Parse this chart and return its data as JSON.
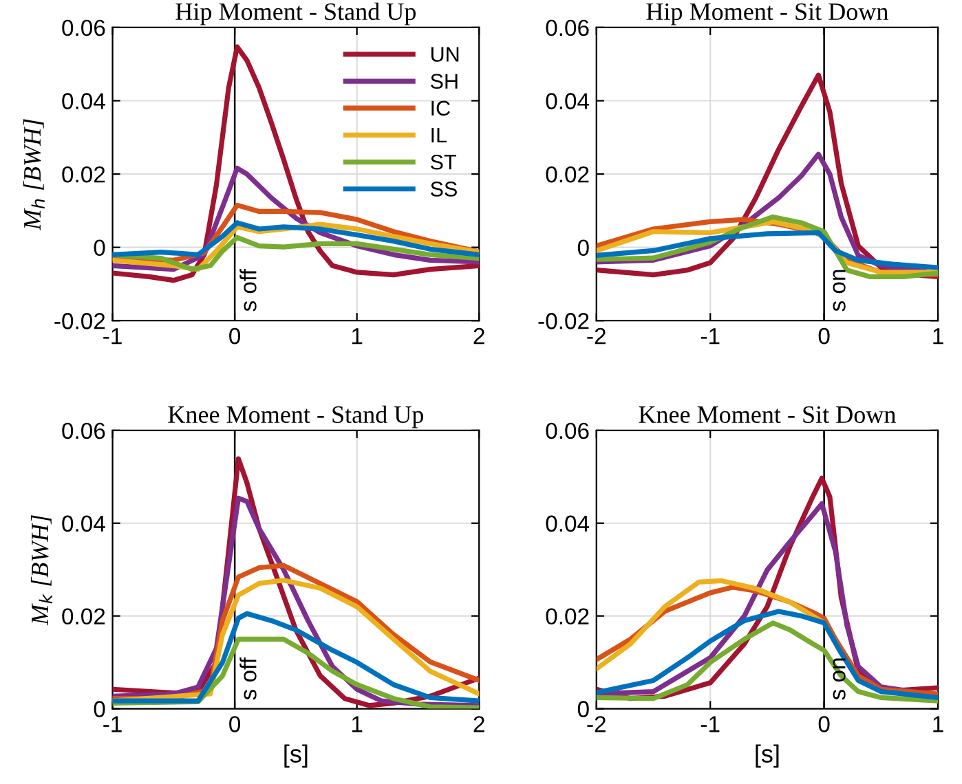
{
  "chart_data": [
    {
      "type": "line",
      "title": "Hip Moment - Stand Up",
      "ylabel": "M$_{h}$ [BWH]",
      "xlim": [
        -1,
        2
      ],
      "xticks": [
        -1,
        0,
        1,
        2
      ],
      "ylim": [
        -0.02,
        0.06
      ],
      "yticks": [
        {
          "value": -0.02,
          "label": "-0.02"
        },
        0,
        0.02,
        0.04,
        0.06
      ],
      "grid": true,
      "legend": "top right",
      "ref_lines": [
        {
          "axis": "x",
          "value": 0,
          "label": "s off",
          "color": "#000000"
        }
      ],
      "series": [
        {
          "name": "UN",
          "color": "#a2142f",
          "x": [
            -1,
            -0.7,
            -0.5,
            -0.35,
            -0.25,
            -0.15,
            -0.05,
            0.02,
            0.1,
            0.2,
            0.3,
            0.4,
            0.5,
            0.6,
            0.7,
            0.8,
            1.0,
            1.3,
            1.6,
            2.0
          ],
          "values": [
            -0.007,
            -0.008,
            -0.009,
            -0.0075,
            -0.002,
            0.017,
            0.0435,
            0.0547,
            0.051,
            0.0435,
            0.034,
            0.024,
            0.0135,
            0.0043,
            -0.001,
            -0.005,
            -0.0068,
            -0.0075,
            -0.006,
            -0.005
          ]
        },
        {
          "name": "SH",
          "color": "#7e2f8e",
          "x": [
            -1,
            -0.5,
            -0.25,
            -0.1,
            0.02,
            0.1,
            0.3,
            0.5,
            0.7,
            1.0,
            1.3,
            1.6,
            2.0
          ],
          "values": [
            -0.005,
            -0.006,
            -0.002,
            0.011,
            0.0216,
            0.02,
            0.0135,
            0.008,
            0.004,
            0.0004,
            -0.002,
            -0.0035,
            -0.004
          ]
        },
        {
          "name": "IC",
          "color": "#d95319",
          "x": [
            -1,
            -0.5,
            -0.25,
            -0.1,
            0.02,
            0.2,
            0.4,
            0.7,
            1.0,
            1.3,
            1.6,
            2.0
          ],
          "values": [
            -0.003,
            -0.0035,
            -0.0015,
            0.0056,
            0.0115,
            0.0098,
            0.0098,
            0.0095,
            0.0076,
            0.0043,
            0.0017,
            -0.0012
          ]
        },
        {
          "name": "IL",
          "color": "#edb120",
          "x": [
            -1,
            -0.5,
            -0.3,
            -0.15,
            0.02,
            0.2,
            0.4,
            0.7,
            1.0,
            1.3,
            1.6,
            2.0
          ],
          "values": [
            -0.0035,
            -0.005,
            -0.006,
            -0.001,
            0.0056,
            0.0043,
            0.005,
            0.0063,
            0.005,
            0.003,
            0.001,
            -0.0013
          ]
        },
        {
          "name": "ST",
          "color": "#77ac30",
          "x": [
            -1,
            -0.6,
            -0.35,
            -0.2,
            -0.1,
            0.02,
            0.2,
            0.4,
            0.7,
            1.0,
            1.3,
            1.6,
            2.0
          ],
          "values": [
            -0.002,
            -0.003,
            -0.006,
            -0.005,
            -0.001,
            0.0027,
            0.0004,
            0.0001,
            0.001,
            0.001,
            -0.0005,
            -0.002,
            -0.003
          ]
        },
        {
          "name": "SS",
          "color": "#0072bd",
          "x": [
            -1,
            -0.6,
            -0.3,
            -0.1,
            0.02,
            0.2,
            0.4,
            0.7,
            1.0,
            1.3,
            1.6,
            2.0
          ],
          "values": [
            -0.002,
            -0.0013,
            -0.002,
            0.003,
            0.0067,
            0.005,
            0.0056,
            0.005,
            0.0034,
            0.0017,
            -0.0005,
            -0.002
          ]
        }
      ]
    },
    {
      "type": "line",
      "title": "Hip Moment - Sit Down",
      "xlim": [
        -2,
        1
      ],
      "xticks": [
        -2,
        -1,
        0,
        1
      ],
      "ylim": [
        -0.02,
        0.06
      ],
      "yticks": [
        {
          "value": -0.02,
          "label": "-0.02"
        },
        0,
        0.02,
        0.04,
        0.06
      ],
      "grid": true,
      "ref_lines": [
        {
          "axis": "x",
          "value": 0,
          "label": "s on",
          "color": "#000000"
        }
      ],
      "series": [
        {
          "color": "#a2142f",
          "x": [
            -2,
            -1.5,
            -1.2,
            -1.0,
            -0.8,
            -0.6,
            -0.4,
            -0.2,
            -0.05,
            0.05,
            0.15,
            0.3,
            0.5,
            0.8,
            1.0
          ],
          "values": [
            -0.0062,
            -0.0075,
            -0.0062,
            -0.0042,
            0.0024,
            0.0135,
            0.0267,
            0.0385,
            0.047,
            0.037,
            0.0175,
            0.0004,
            -0.0055,
            -0.0075,
            -0.008
          ]
        },
        {
          "color": "#7e2f8e",
          "x": [
            -2,
            -1.5,
            -1.0,
            -0.7,
            -0.4,
            -0.2,
            -0.05,
            0.05,
            0.15,
            0.3,
            0.5,
            1.0
          ],
          "values": [
            -0.004,
            -0.0035,
            0.0004,
            0.0063,
            0.0135,
            0.0195,
            0.0254,
            0.02,
            0.0083,
            -0.0022,
            -0.005,
            -0.007
          ]
        },
        {
          "color": "#d95319",
          "x": [
            -2,
            -1.5,
            -1.0,
            -0.7,
            -0.4,
            -0.1,
            0.0,
            0.2,
            0.5,
            1.0
          ],
          "values": [
            0.0004,
            0.005,
            0.007,
            0.0076,
            0.0063,
            0.0043,
            0.003,
            -0.0035,
            -0.0068,
            -0.0075
          ]
        },
        {
          "color": "#edb120",
          "x": [
            -2,
            -1.5,
            -1.0,
            -0.7,
            -0.45,
            -0.1,
            0.0,
            0.2,
            0.5,
            1.0
          ],
          "values": [
            -0.0009,
            0.0043,
            0.004,
            0.0056,
            0.007,
            0.0046,
            0.003,
            -0.0042,
            -0.0068,
            -0.0068
          ]
        },
        {
          "color": "#77ac30",
          "x": [
            -2,
            -1.5,
            -1.0,
            -0.7,
            -0.45,
            -0.2,
            0.0,
            0.2,
            0.4,
            0.7,
            1.0
          ],
          "values": [
            -0.0033,
            -0.0029,
            0.0014,
            0.0056,
            0.0083,
            0.0067,
            0.0043,
            -0.0062,
            -0.008,
            -0.008,
            -0.007
          ]
        },
        {
          "color": "#0072bd",
          "x": [
            -2,
            -1.5,
            -1.0,
            -0.5,
            -0.05,
            0.1,
            0.3,
            0.6,
            1.0
          ],
          "values": [
            -0.0022,
            -0.0009,
            0.0024,
            0.0037,
            0.004,
            -0.0009,
            -0.0035,
            -0.0046,
            -0.0055
          ]
        }
      ]
    },
    {
      "type": "line",
      "title": "Knee Moment - Stand Up",
      "xlabel": "[s]",
      "ylabel": "M$_{k}$ [BWH]",
      "xlim": [
        -1,
        2
      ],
      "xticks": [
        -1,
        0,
        1,
        2
      ],
      "ylim": [
        0,
        0.06
      ],
      "yticks": [
        0,
        0.02,
        0.04,
        0.06
      ],
      "grid": true,
      "ref_lines": [
        {
          "axis": "x",
          "value": 0,
          "label": "s off",
          "color": "#000000"
        }
      ],
      "series": [
        {
          "color": "#a2142f",
          "x": [
            -1,
            -0.5,
            -0.3,
            -0.15,
            -0.05,
            0.03,
            0.1,
            0.2,
            0.35,
            0.5,
            0.7,
            0.9,
            1.1,
            1.3,
            1.6,
            2.0
          ],
          "values": [
            0.0042,
            0.0034,
            0.0037,
            0.01,
            0.034,
            0.0539,
            0.0487,
            0.0388,
            0.028,
            0.017,
            0.0071,
            0.0022,
            0.0007,
            0.0012,
            0.0027,
            0.0066
          ]
        },
        {
          "color": "#7e2f8e",
          "x": [
            -1,
            -0.5,
            -0.3,
            -0.15,
            -0.05,
            0.03,
            0.1,
            0.2,
            0.4,
            0.6,
            0.8,
            1.0,
            1.2,
            1.5,
            2.0
          ],
          "values": [
            0.0027,
            0.0032,
            0.0047,
            0.013,
            0.031,
            0.0454,
            0.0447,
            0.0388,
            0.03,
            0.019,
            0.0091,
            0.0042,
            0.0017,
            0.001,
            0.0007
          ]
        },
        {
          "color": "#d95319",
          "x": [
            -1,
            -0.5,
            -0.2,
            -0.1,
            0.03,
            0.2,
            0.4,
            0.7,
            1.0,
            1.3,
            1.6,
            2.0
          ],
          "values": [
            0.0022,
            0.0022,
            0.0042,
            0.019,
            0.0284,
            0.0304,
            0.0309,
            0.027,
            0.0231,
            0.016,
            0.0101,
            0.0061
          ]
        },
        {
          "color": "#edb120",
          "x": [
            -1,
            -0.2,
            -0.1,
            0.03,
            0.2,
            0.4,
            0.7,
            1.0,
            1.3,
            1.6,
            2.0
          ],
          "values": [
            0.0017,
            0.0032,
            0.016,
            0.0245,
            0.027,
            0.0277,
            0.026,
            0.022,
            0.015,
            0.0081,
            0.0032
          ]
        },
        {
          "color": "#77ac30",
          "x": [
            -1,
            -0.3,
            -0.1,
            0.03,
            0.2,
            0.4,
            0.6,
            0.8,
            1.0,
            1.3,
            1.6,
            2.0
          ],
          "values": [
            0.0012,
            0.0015,
            0.0071,
            0.015,
            0.015,
            0.015,
            0.012,
            0.0081,
            0.0052,
            0.0022,
            0.0004,
            0.0002
          ]
        },
        {
          "color": "#0072bd",
          "x": [
            -1,
            -0.3,
            -0.1,
            0.03,
            0.1,
            0.3,
            0.5,
            0.8,
            1.0,
            1.3,
            1.6,
            2.0
          ],
          "values": [
            0.0017,
            0.0017,
            0.01,
            0.0195,
            0.0205,
            0.019,
            0.017,
            0.0126,
            0.01,
            0.0052,
            0.0024,
            0.0017
          ]
        }
      ]
    },
    {
      "type": "line",
      "title": "Knee Moment - Sit Down",
      "xlabel": "[s]",
      "xlim": [
        -2,
        1
      ],
      "xticks": [
        -2,
        -1,
        0,
        1
      ],
      "ylim": [
        0,
        0.06
      ],
      "yticks": [
        0,
        0.02,
        0.04,
        0.06
      ],
      "grid": true,
      "ref_lines": [
        {
          "axis": "x",
          "value": 0,
          "label": "s on",
          "color": "#000000"
        }
      ],
      "series": [
        {
          "color": "#a2142f",
          "x": [
            -2,
            -1.7,
            -1.4,
            -1.0,
            -0.7,
            -0.5,
            -0.3,
            -0.1,
            -0.02,
            0.05,
            0.15,
            0.3,
            0.5,
            1.0
          ],
          "values": [
            0.0042,
            0.0022,
            0.0027,
            0.0056,
            0.014,
            0.022,
            0.035,
            0.0457,
            0.0497,
            0.0457,
            0.024,
            0.0081,
            0.0037,
            0.0045
          ]
        },
        {
          "color": "#7e2f8e",
          "x": [
            -2,
            -1.5,
            -1.0,
            -0.7,
            -0.5,
            -0.3,
            -0.1,
            -0.02,
            0.1,
            0.2,
            0.3,
            0.5,
            1.0
          ],
          "values": [
            0.0032,
            0.0037,
            0.011,
            0.02,
            0.0299,
            0.036,
            0.0418,
            0.0442,
            0.0339,
            0.018,
            0.0091,
            0.0047,
            0.0029
          ]
        },
        {
          "color": "#d95319",
          "x": [
            -2,
            -1.7,
            -1.4,
            -1.0,
            -0.8,
            -0.6,
            -0.3,
            -0.1,
            0.0,
            0.1,
            0.3,
            0.5,
            1.0
          ],
          "values": [
            0.0106,
            0.015,
            0.021,
            0.025,
            0.0262,
            0.0254,
            0.023,
            0.0208,
            0.0195,
            0.015,
            0.0071,
            0.0042,
            0.0032
          ]
        },
        {
          "color": "#edb120",
          "x": [
            -2,
            -1.7,
            -1.4,
            -1.1,
            -0.9,
            -0.6,
            -0.3,
            -0.1,
            0.0,
            0.15
          ],
          "values": [
            0.0086,
            0.014,
            0.022,
            0.0273,
            0.0276,
            0.0259,
            0.023,
            0.02,
            0.0185,
            0.012
          ]
        },
        {
          "color": "#77ac30",
          "x": [
            -2,
            -1.5,
            -1.2,
            -1.0,
            -0.7,
            -0.45,
            -0.3,
            -0.1,
            0.0,
            0.15,
            0.3,
            0.5,
            1.0
          ],
          "values": [
            0.0024,
            0.0022,
            0.0052,
            0.01,
            0.015,
            0.0185,
            0.017,
            0.014,
            0.0126,
            0.0071,
            0.0037,
            0.0024,
            0.0017
          ]
        },
        {
          "color": "#0072bd",
          "x": [
            -2,
            -1.5,
            -1.2,
            -1.0,
            -0.7,
            -0.4,
            -0.2,
            0.0,
            0.15,
            0.3,
            0.5,
            1.0
          ],
          "values": [
            0.0035,
            0.0061,
            0.011,
            0.0146,
            0.019,
            0.021,
            0.02,
            0.0185,
            0.012,
            0.0061,
            0.0037,
            0.0024
          ]
        }
      ]
    }
  ]
}
